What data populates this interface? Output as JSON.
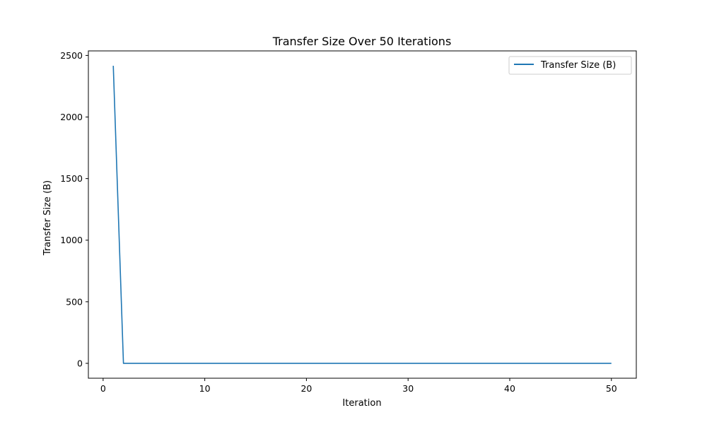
{
  "chart_data": {
    "type": "line",
    "title": "Transfer Size Over 50 Iterations",
    "xlabel": "Iteration",
    "ylabel": "Transfer Size (B)",
    "xlim": [
      -1.45,
      52.45
    ],
    "ylim": [
      -120.8,
      2536.8
    ],
    "x_ticks": [
      0,
      10,
      20,
      30,
      40,
      50
    ],
    "y_ticks": [
      0,
      500,
      1000,
      1500,
      2000,
      2500
    ],
    "grid": false,
    "legend_position": "top-right",
    "colors": {
      "series": "#1f77b4",
      "axes": "#000000",
      "background": "#ffffff"
    },
    "series": [
      {
        "name": "Transfer Size (B)",
        "x": [
          1,
          2,
          3,
          4,
          5,
          6,
          7,
          8,
          9,
          10,
          11,
          12,
          13,
          14,
          15,
          16,
          17,
          18,
          19,
          20,
          21,
          22,
          23,
          24,
          25,
          26,
          27,
          28,
          29,
          30,
          31,
          32,
          33,
          34,
          35,
          36,
          37,
          38,
          39,
          40,
          41,
          42,
          43,
          44,
          45,
          46,
          47,
          48,
          49,
          50
        ],
        "values": [
          2416,
          0,
          0,
          0,
          0,
          0,
          0,
          0,
          0,
          0,
          0,
          0,
          0,
          0,
          0,
          0,
          0,
          0,
          0,
          0,
          0,
          0,
          0,
          0,
          0,
          0,
          0,
          0,
          0,
          0,
          0,
          0,
          0,
          0,
          0,
          0,
          0,
          0,
          0,
          0,
          0,
          0,
          0,
          0,
          0,
          0,
          0,
          0,
          0,
          0
        ]
      }
    ]
  }
}
